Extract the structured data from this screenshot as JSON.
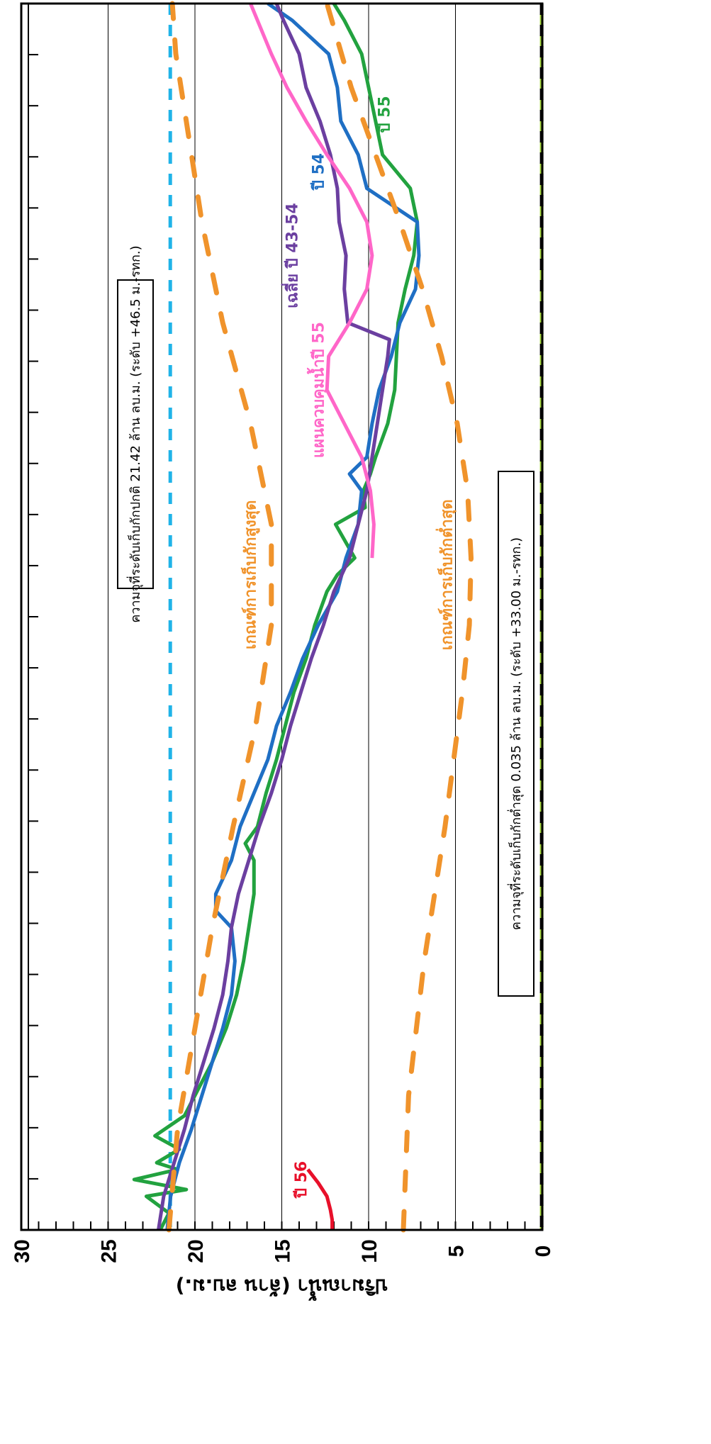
{
  "chart_data": {
    "type": "line",
    "orientation": "rotated-90-clockwise",
    "ylabel": "ปริมาณน้ำ (ล้าน ลบ.ม.)",
    "ylim": [
      0,
      30
    ],
    "ytick_labels": [
      "0",
      "5",
      "10",
      "15",
      "20",
      "25",
      "30"
    ],
    "xlim": [
      0,
      365
    ],
    "x_tick_count": 24,
    "grid": true,
    "notes": [
      "ความจุที่ระดับเก็บกักปกติ 21.42 ล้าน ลบ.ม. (ระดับ +46.5 ม.-รทก.)",
      "ความจุที่ระดับเก็บกักต่ำสุด 0.035 ล้าน ลบ.ม. (ระดับ +33.00 ม.-รทก.)"
    ],
    "reference_lines": [
      {
        "name": "ความจุที่ระดับเก็บกักปกติ",
        "value": 21.42,
        "color": "#1fb3e8",
        "style": "dashed"
      },
      {
        "name": "ความจุที่ระดับเก็บกักต่ำสุด",
        "value": 0.035,
        "color": "#000000",
        "style": "dashed",
        "alt_color": "#9acd32"
      }
    ],
    "series": [
      {
        "name": "ปี 56",
        "color": "#e8102a",
        "style": "solid",
        "x": [
          0,
          3,
          6,
          10,
          14,
          18
        ],
        "y": [
          12.1,
          12.1,
          12.2,
          12.4,
          12.9,
          13.5
        ]
      },
      {
        "name": "ปี 55",
        "color": "#22a23f",
        "style": "solid",
        "x": [
          0,
          5,
          10,
          12,
          15,
          18,
          20,
          24,
          28,
          34,
          42,
          50,
          60,
          70,
          80,
          90,
          100,
          110,
          115,
          120,
          130,
          140,
          150,
          160,
          170,
          180,
          190,
          195,
          200,
          210,
          215,
          220,
          225,
          230,
          240,
          250,
          260,
          270,
          280,
          290,
          300,
          310,
          320,
          330,
          340,
          350,
          360,
          365
        ],
        "y": [
          22,
          21.5,
          22.8,
          20.5,
          23.5,
          21,
          22.2,
          20.9,
          22.3,
          20.6,
          19.8,
          19,
          18.2,
          17.6,
          17.2,
          16.9,
          16.6,
          16.6,
          17.1,
          16.4,
          15.9,
          15.3,
          14.8,
          14.3,
          13.6,
          13.1,
          12.4,
          11.8,
          10.8,
          11.9,
          10.2,
          10.3,
          9.9,
          9.6,
          8.9,
          8.5,
          8.4,
          8.3,
          7.9,
          7.4,
          7.2,
          7.6,
          9.2,
          9.6,
          10,
          10.4,
          11.4,
          12
        ]
      },
      {
        "name": "ปี 54",
        "color": "#1f6fc4",
        "style": "solid",
        "x": [
          0,
          10,
          20,
          30,
          40,
          50,
          60,
          70,
          80,
          90,
          95,
          100,
          110,
          120,
          130,
          140,
          150,
          160,
          170,
          180,
          190,
          200,
          210,
          220,
          225,
          230,
          240,
          250,
          260,
          270,
          280,
          290,
          300,
          310,
          320,
          330,
          340,
          350,
          360,
          365
        ],
        "y": [
          21.6,
          21.4,
          20.9,
          20.2,
          19.6,
          19,
          18.4,
          17.9,
          17.7,
          17.9,
          18.8,
          18.8,
          17.9,
          17.4,
          16.6,
          15.8,
          15.3,
          14.5,
          13.8,
          12.9,
          11.8,
          11.3,
          10.6,
          10.4,
          11.1,
          10.1,
          9.8,
          9.4,
          8.7,
          8.2,
          7.3,
          7.1,
          7.2,
          10.1,
          10.6,
          11.6,
          11.8,
          12.3,
          14.4,
          15.8
        ]
      },
      {
        "name": "เฉลี่ย ปี 43-54",
        "color": "#6b3fa0",
        "style": "solid",
        "x": [
          0,
          10,
          20,
          30,
          40,
          50,
          60,
          70,
          80,
          90,
          100,
          110,
          120,
          130,
          140,
          150,
          160,
          170,
          180,
          190,
          200,
          210,
          220,
          230,
          240,
          250,
          260,
          265,
          270,
          280,
          290,
          300,
          310,
          320,
          330,
          340,
          350,
          360,
          365
        ],
        "y": [
          22.1,
          21.8,
          21.2,
          20.6,
          20.1,
          19.5,
          18.9,
          18.4,
          18.1,
          17.9,
          17.5,
          16.9,
          16.3,
          15.6,
          15,
          14.5,
          13.9,
          13.3,
          12.6,
          12,
          11.1,
          10.6,
          10.1,
          9.8,
          9.5,
          9.2,
          8.9,
          8.8,
          11.2,
          11.4,
          11.3,
          11.7,
          11.8,
          12.2,
          12.8,
          13.6,
          14,
          14.9,
          15.3
        ]
      },
      {
        "name": "แผนควบคุมน้ำปี 55",
        "color": "#ff66c8",
        "style": "solid",
        "x": [
          200,
          210,
          220,
          230,
          240,
          250,
          260,
          270,
          280,
          290,
          300,
          310,
          320,
          330,
          340,
          350,
          360,
          365
        ],
        "y": [
          9.8,
          9.7,
          9.9,
          10.4,
          11.4,
          12.4,
          12.3,
          11.1,
          10.1,
          9.8,
          10.1,
          11.1,
          12.4,
          13.6,
          14.7,
          15.6,
          16.4,
          16.8
        ]
      },
      {
        "name": "เกณฑ์การเก็บกักสูงสุด",
        "color": "#f0932b",
        "style": "dashed",
        "x": [
          0,
          30,
          60,
          90,
          120,
          150,
          180,
          210,
          240,
          270,
          300,
          330,
          350,
          365
        ],
        "y": [
          21.5,
          21,
          20,
          19,
          17.8,
          16.5,
          15.6,
          15.6,
          16.8,
          18.4,
          19.6,
          20.5,
          21.1,
          21.3
        ]
      },
      {
        "name": "เกณฑ์การเก็บกักต่ำสุด",
        "color": "#f0932b",
        "style": "dashed",
        "x": [
          0,
          40,
          80,
          120,
          160,
          180,
          200,
          220,
          240,
          260,
          280,
          300,
          320,
          340,
          365
        ],
        "y": [
          8,
          7.7,
          6.8,
          5.6,
          4.6,
          4.2,
          4.1,
          4.3,
          4.9,
          5.8,
          6.9,
          8.2,
          9.6,
          11,
          12.4
        ]
      }
    ],
    "series_labels": [
      {
        "text": "ปี 56",
        "series": "ปี 56",
        "x": 15,
        "y": 13.6
      },
      {
        "text": "ปี 55",
        "series": "ปี 55",
        "x": 332,
        "y": 8.8
      },
      {
        "text": "ปี 54",
        "series": "ปี 54",
        "x": 315,
        "y": 12.6
      },
      {
        "text": "เฉลี่ย ปี 43-54",
        "series": "เฉลี่ย ปี 43-54",
        "x": 290,
        "y": 14.1
      },
      {
        "text": "แผนควบคุมน้ำปี 55",
        "series": "แผนควบคุมน้ำปี 55",
        "x": 250,
        "y": 12.6
      },
      {
        "text": "เกณฑ์การเก็บกักสูงสุด",
        "series": "เกณฑ์การเก็บกักสูงสุด",
        "x": 195,
        "y": 16.5
      },
      {
        "text": "เกณฑ์การเก็บกักต่ำสุด",
        "series": "เกณฑ์การเก็บกักต่ำสุด",
        "x": 195,
        "y": 5.2
      }
    ]
  }
}
